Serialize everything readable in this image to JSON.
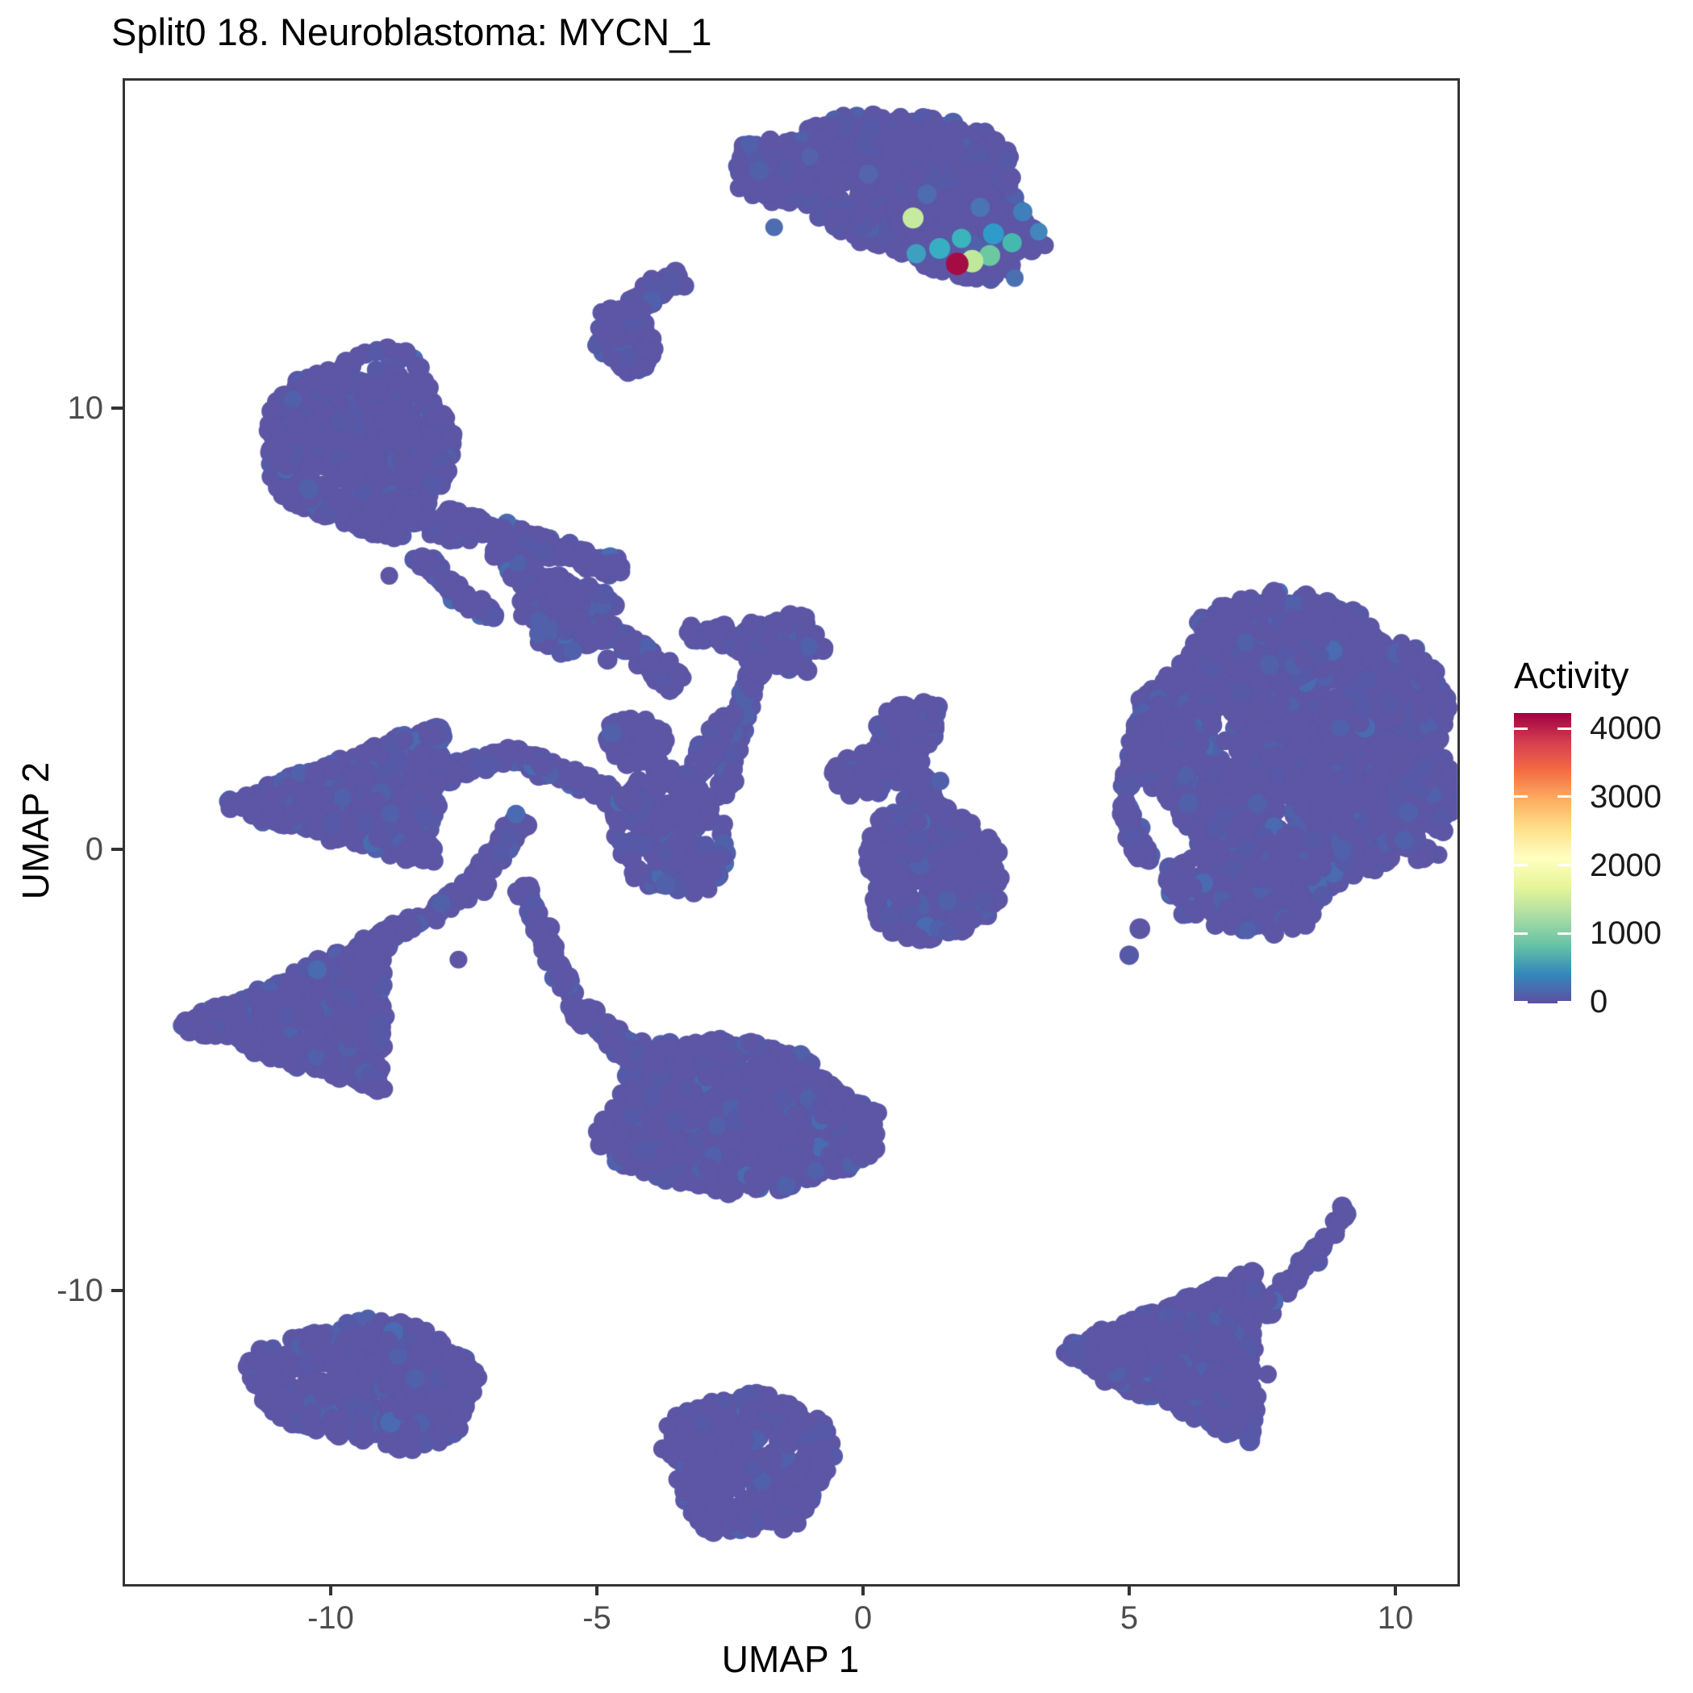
{
  "title": "Split0 18. Neuroblastoma: MYCN_1",
  "axes": {
    "x_label": "UMAP 1",
    "y_label": "UMAP 2",
    "x_ticks": [
      {
        "value": -10,
        "label": "-10"
      },
      {
        "value": -5,
        "label": "-5"
      },
      {
        "value": 0,
        "label": "0"
      },
      {
        "value": 5,
        "label": "5"
      },
      {
        "value": 10,
        "label": "10"
      }
    ],
    "y_ticks": [
      {
        "value": 10,
        "label": "10"
      },
      {
        "value": 0,
        "label": "0"
      },
      {
        "value": -10,
        "label": "-10"
      }
    ]
  },
  "legend": {
    "title": "Activity",
    "min": 0,
    "max": 4000,
    "tick_values": [
      4000,
      3000,
      2000,
      1000,
      0
    ],
    "tick_labels": [
      "4000",
      "3000",
      "2000",
      "1000",
      "0"
    ],
    "gradient_stops": [
      [
        0.0,
        "#5E4FA2"
      ],
      [
        0.1,
        "#3288BD"
      ],
      [
        0.2,
        "#66C2A5"
      ],
      [
        0.3,
        "#ABDDA4"
      ],
      [
        0.4,
        "#E6F598"
      ],
      [
        0.5,
        "#FFFFBF"
      ],
      [
        0.6,
        "#FEE08B"
      ],
      [
        0.7,
        "#FDAE61"
      ],
      [
        0.8,
        "#F46D43"
      ],
      [
        0.9,
        "#D53E4F"
      ],
      [
        1.0,
        "#9E0142"
      ]
    ]
  },
  "colors": {
    "background": "#FFFFFF",
    "axis_line": "#333333",
    "tick_label": "#4D4D4D",
    "title_text": "#000000",
    "base_point": "#5C56A5",
    "point_variants": [
      "#5C56A5",
      "#5659A8",
      "#5160AB",
      "#4A6BB1"
    ],
    "variant_cutoffs": [
      0.8,
      0.93,
      0.985,
      1.0
    ]
  },
  "chart_data": {
    "type": "scatter",
    "title": "Split0 18. Neuroblastoma: MYCN_1",
    "xlabel": "UMAP 1",
    "ylabel": "UMAP 2",
    "x_range": [
      -13.9,
      11.2
    ],
    "y_range": [
      -16.6,
      17.5
    ],
    "grid": false,
    "legend_position": "right",
    "point_radius_px": 11,
    "clusters": [
      {
        "type": "ellipse",
        "name": "top-main",
        "cx": 0.7,
        "cy": 15.1,
        "rx": 2.45,
        "ry": 1.55,
        "rot": -14,
        "n": 780
      },
      {
        "type": "ellipse",
        "name": "top-bulge",
        "cx": 1.95,
        "cy": 13.95,
        "rx": 1.4,
        "ry": 0.95,
        "rot": -18,
        "n": 280
      },
      {
        "type": "ellipse",
        "name": "top-tip",
        "cx": -1.75,
        "cy": 15.4,
        "rx": 0.7,
        "ry": 0.8,
        "rot": 0,
        "n": 70
      },
      {
        "type": "strand",
        "name": "comma-arc",
        "from": [
          -3.45,
          12.95
        ],
        "to": [
          -4.35,
          12.35
        ],
        "w": 0.55,
        "n": 70
      },
      {
        "type": "ellipse",
        "name": "comma-head",
        "cx": -4.45,
        "cy": 11.6,
        "rx": 0.55,
        "ry": 0.8,
        "rot": 15,
        "n": 80
      },
      {
        "type": "ellipse",
        "name": "round-left",
        "cx": -9.4,
        "cy": 9.2,
        "rx": 1.75,
        "ry": 2.05,
        "rot": 0,
        "n": 720
      },
      {
        "type": "strand",
        "name": "net-a",
        "from": [
          -9.0,
          7.9
        ],
        "to": [
          -7.4,
          7.0
        ],
        "w": 0.5,
        "n": 80
      },
      {
        "type": "strand",
        "name": "net-b",
        "from": [
          -8.3,
          6.6
        ],
        "to": [
          -7.0,
          5.3
        ],
        "w": 0.5,
        "n": 70
      },
      {
        "type": "strand",
        "name": "net-c",
        "from": [
          -7.8,
          7.6
        ],
        "to": [
          -4.6,
          6.35
        ],
        "w": 0.55,
        "n": 170
      },
      {
        "type": "strand",
        "name": "net-d",
        "from": [
          -6.9,
          6.7
        ],
        "to": [
          -3.4,
          3.75
        ],
        "w": 0.6,
        "n": 190
      },
      {
        "type": "ellipse",
        "name": "net-blob-a",
        "cx": -5.55,
        "cy": 5.35,
        "rx": 0.9,
        "ry": 0.85,
        "rot": 0,
        "n": 120
      },
      {
        "type": "strand",
        "name": "net-e",
        "from": [
          -5.9,
          6.2
        ],
        "to": [
          -5.2,
          4.7
        ],
        "w": 0.5,
        "n": 70
      },
      {
        "type": "strand",
        "name": "net-f",
        "from": [
          -3.3,
          4.9
        ],
        "to": [
          -1.2,
          4.6
        ],
        "w": 0.55,
        "n": 100
      },
      {
        "type": "ellipse",
        "name": "net-blob-b",
        "cx": -1.55,
        "cy": 4.7,
        "rx": 0.85,
        "ry": 0.6,
        "rot": 0,
        "n": 90
      },
      {
        "type": "strand",
        "name": "net-g",
        "from": [
          -1.95,
          4.4
        ],
        "to": [
          -2.7,
          1.2
        ],
        "w": 0.5,
        "n": 130
      },
      {
        "type": "strand",
        "name": "net-h",
        "from": [
          -2.5,
          3.0
        ],
        "to": [
          -3.4,
          1.3
        ],
        "w": 0.5,
        "n": 90
      },
      {
        "type": "ellipse",
        "name": "net-blob-c",
        "cx": -3.6,
        "cy": 0.4,
        "rx": 1.05,
        "ry": 1.5,
        "rot": 12,
        "n": 240
      },
      {
        "type": "strand",
        "name": "net-i",
        "from": [
          -6.6,
          2.2
        ],
        "to": [
          -4.1,
          0.95
        ],
        "w": 0.55,
        "n": 130
      },
      {
        "type": "ellipse",
        "name": "net-blob-d",
        "cx": -4.3,
        "cy": 2.45,
        "rx": 0.6,
        "ry": 0.55,
        "rot": 0,
        "n": 60
      },
      {
        "type": "strand",
        "name": "net-j",
        "from": [
          -7.3,
          -0.8
        ],
        "to": [
          -6.4,
          0.7
        ],
        "w": 0.5,
        "n": 80
      },
      {
        "type": "strand",
        "name": "net-k",
        "from": [
          -6.4,
          -0.9
        ],
        "to": [
          -5.5,
          -3.3
        ],
        "w": 0.45,
        "n": 80
      },
      {
        "type": "tri",
        "name": "mid-left-arrow",
        "v": [
          [
            -12.2,
            1.0
          ],
          [
            -7.9,
            2.9
          ],
          [
            -8.1,
            -0.3
          ]
        ],
        "n": 680
      },
      {
        "type": "strand",
        "name": "arrow-arm",
        "from": [
          -8.0,
          1.6
        ],
        "to": [
          -6.6,
          2.2
        ],
        "w": 0.45,
        "n": 50
      },
      {
        "type": "tri",
        "name": "low-left-arrow",
        "v": [
          [
            -12.9,
            -4.0
          ],
          [
            -9.0,
            -1.85
          ],
          [
            -9.0,
            -5.5
          ]
        ],
        "n": 620
      },
      {
        "type": "strand",
        "name": "lowarrow-arm",
        "from": [
          -9.1,
          -2.1
        ],
        "to": [
          -7.5,
          -1.0
        ],
        "w": 0.45,
        "n": 70
      },
      {
        "type": "ellipse",
        "name": "bottom-mid",
        "cx": -2.45,
        "cy": -6.1,
        "rx": 2.5,
        "ry": 1.75,
        "rot": -7,
        "n": 900
      },
      {
        "type": "strand",
        "name": "bottom-mid-tail",
        "from": [
          -5.4,
          -3.6
        ],
        "to": [
          -3.9,
          -5.0
        ],
        "w": 0.6,
        "n": 110
      },
      {
        "type": "ellipse",
        "name": "bottom-mid-nub",
        "cx": -0.3,
        "cy": -6.0,
        "rx": 0.6,
        "ry": 0.45,
        "rot": 0,
        "n": 45
      },
      {
        "type": "ellipse",
        "name": "mid-right-main",
        "cx": 1.25,
        "cy": -0.5,
        "rx": 1.3,
        "ry": 1.65,
        "rot": 8,
        "n": 320
      },
      {
        "type": "ellipse",
        "name": "mid-right-top",
        "cx": 0.85,
        "cy": 2.7,
        "rx": 0.55,
        "ry": 0.75,
        "rot": -30,
        "n": 75
      },
      {
        "type": "ellipse",
        "name": "mid-right-arm",
        "cx": 0.15,
        "cy": 1.75,
        "rx": 0.75,
        "ry": 0.5,
        "rot": 20,
        "n": 60
      },
      {
        "type": "strand",
        "name": "mid-right-link",
        "from": [
          0.8,
          2.2
        ],
        "to": [
          1.25,
          1.0
        ],
        "w": 0.5,
        "n": 50
      },
      {
        "type": "ellipse",
        "name": "right-main",
        "cx": 8.1,
        "cy": 2.2,
        "rx": 2.9,
        "ry": 3.1,
        "rot": 0,
        "n": 1550
      },
      {
        "type": "ellipse",
        "name": "right-top",
        "cx": 7.7,
        "cy": 4.9,
        "rx": 1.7,
        "ry": 0.9,
        "rot": 10,
        "n": 230
      },
      {
        "type": "ellipse",
        "name": "right-bottom",
        "cx": 7.15,
        "cy": -0.9,
        "rx": 1.5,
        "ry": 1.05,
        "rot": -12,
        "n": 210
      },
      {
        "type": "ellipse",
        "name": "right-east",
        "cx": 10.35,
        "cy": 1.1,
        "rx": 0.8,
        "ry": 1.35,
        "rot": 0,
        "n": 140
      },
      {
        "type": "strand",
        "name": "right-sat-a",
        "from": [
          4.9,
          1.3
        ],
        "to": [
          5.6,
          3.5
        ],
        "w": 0.45,
        "n": 70
      },
      {
        "type": "strand",
        "name": "right-sat-b",
        "from": [
          5.3,
          -0.3
        ],
        "to": [
          4.9,
          1.0
        ],
        "w": 0.4,
        "n": 50
      },
      {
        "type": "ellipse",
        "name": "bottom-left",
        "cx": -9.3,
        "cy": -12.1,
        "rx": 2.15,
        "ry": 1.4,
        "rot": -8,
        "n": 540
      },
      {
        "type": "ellipse",
        "name": "bottom-center",
        "cx": -2.15,
        "cy": -13.9,
        "rx": 1.55,
        "ry": 1.65,
        "rot": 0,
        "n": 400
      },
      {
        "type": "tri",
        "name": "bottom-right-tri",
        "v": [
          [
            3.55,
            -11.4
          ],
          [
            7.35,
            -9.55
          ],
          [
            7.35,
            -13.55
          ]
        ],
        "n": 720
      },
      {
        "type": "strand",
        "name": "br-trail",
        "from": [
          7.5,
          -10.6
        ],
        "to": [
          9.1,
          -8.2
        ],
        "w": 0.45,
        "n": 55
      },
      {
        "type": "dots",
        "name": "singles",
        "pts": [
          [
            -7.6,
            -2.5
          ],
          [
            -5.45,
            4.5
          ],
          [
            -4.8,
            4.3
          ],
          [
            -7.0,
            1.9
          ],
          [
            -8.9,
            6.2
          ],
          [
            5.2,
            -1.8
          ],
          [
            5.0,
            -2.4
          ],
          [
            7.6,
            -11.9
          ],
          [
            9.0,
            -8.1
          ],
          [
            5.45,
            2.2
          ],
          [
            5.05,
            0.3
          ],
          [
            -1.05,
            4.05
          ],
          [
            0.3,
            2.0
          ],
          [
            1.45,
            1.55
          ],
          [
            -6.1,
            -1.9
          ]
        ]
      }
    ],
    "highlight_points": [
      {
        "x": 0.1,
        "y": 15.3,
        "r": 12,
        "color": "#5465AC"
      },
      {
        "x": -1.0,
        "y": 15.7,
        "r": 11,
        "color": "#5362AA"
      },
      {
        "x": 1.2,
        "y": 14.85,
        "r": 12,
        "color": "#4E6DB0"
      },
      {
        "x": 2.2,
        "y": 14.55,
        "r": 12,
        "color": "#4A74B4"
      },
      {
        "x": 3.0,
        "y": 14.45,
        "r": 12,
        "color": "#3F7FBA"
      },
      {
        "x": 2.85,
        "y": 12.95,
        "r": 11,
        "color": "#4A70B2"
      },
      {
        "x": -1.67,
        "y": 14.1,
        "r": 11,
        "color": "#4E6DB0"
      },
      {
        "x": 2.45,
        "y": 13.95,
        "r": 13,
        "color": "#2F9BC9"
      },
      {
        "x": 1.85,
        "y": 13.85,
        "r": 12,
        "color": "#3CB4BC"
      },
      {
        "x": 1.44,
        "y": 13.62,
        "r": 13,
        "color": "#38AEC3"
      },
      {
        "x": 1.0,
        "y": 13.5,
        "r": 12,
        "color": "#3E9FC0"
      },
      {
        "x": 2.8,
        "y": 13.75,
        "r": 12,
        "color": "#45B9AE"
      },
      {
        "x": 3.3,
        "y": 14.0,
        "r": 11,
        "color": "#4286BC"
      },
      {
        "x": 2.38,
        "y": 13.46,
        "r": 13,
        "color": "#6CC8A1"
      },
      {
        "x": 0.94,
        "y": 14.31,
        "r": 13,
        "color": "#C6EB9F"
      },
      {
        "x": 2.05,
        "y": 13.33,
        "r": 14,
        "color": "#BFE89B"
      },
      {
        "x": 1.77,
        "y": 13.27,
        "r": 14,
        "color": "#A60C44"
      }
    ]
  }
}
